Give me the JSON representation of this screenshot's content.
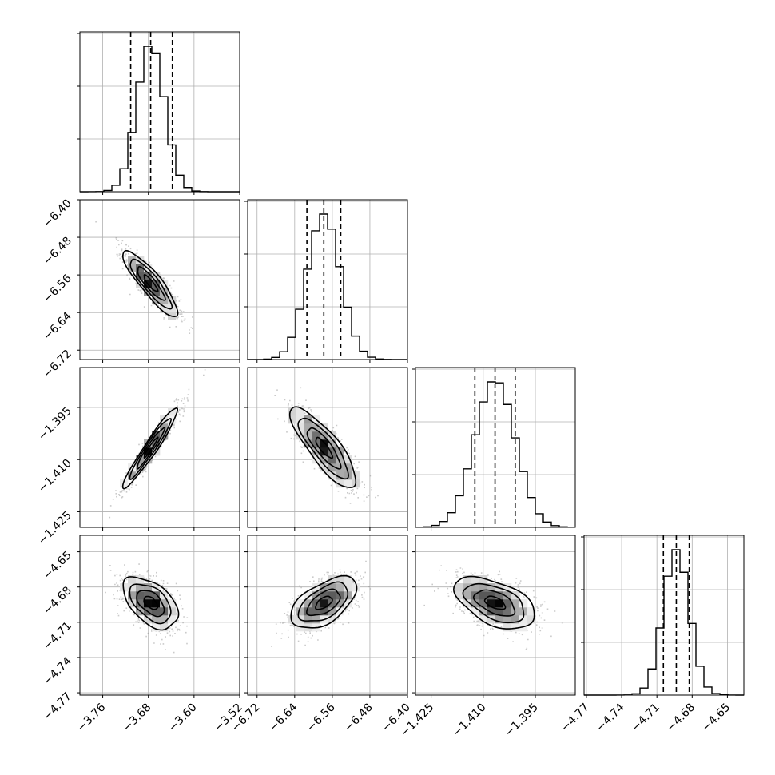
{
  "chart_data": {
    "type": "corner",
    "grid": true,
    "parameters": [
      {
        "range": [
          -3.8,
          -3.52
        ],
        "ticks": [
          -3.76,
          -3.68,
          -3.6,
          -3.52
        ],
        "tick_labels": [
          "−3.76",
          "−3.68",
          "−3.60",
          "−3.52"
        ],
        "quantiles": [
          -3.711,
          -3.676,
          -3.638
        ],
        "mean": -3.676,
        "std": 0.024
      },
      {
        "range": [
          -6.74,
          -6.4
        ],
        "ticks": [
          -6.72,
          -6.64,
          -6.56,
          -6.48,
          -6.4
        ],
        "tick_labels": [
          "−6.72",
          "−6.64",
          "−6.56",
          "−6.48",
          "−6.40"
        ],
        "quantiles": [
          -6.614,
          -6.578,
          -6.542
        ],
        "mean": -6.578,
        "std": 0.035
      },
      {
        "range": [
          -1.4295,
          -1.3835
        ],
        "ticks": [
          -1.425,
          -1.41,
          -1.395
        ],
        "tick_labels": [
          "−1.425",
          "−1.410",
          "−1.395"
        ],
        "quantiles": [
          -1.4124,
          -1.4066,
          -1.4008
        ],
        "mean": -1.4066,
        "std": 0.0058
      },
      {
        "range": [
          -4.772,
          -4.636
        ],
        "ticks": [
          -4.77,
          -4.74,
          -4.71,
          -4.68,
          -4.65
        ],
        "tick_labels": [
          "−4.77",
          "−4.74",
          "−4.71",
          "−4.68",
          "−4.65"
        ],
        "quantiles": [
          -4.7045,
          -4.6935,
          -4.6825
        ],
        "mean": -4.6935,
        "std": 0.011
      }
    ],
    "correlations": [
      [
        1,
        -0.88,
        0.96,
        -0.5
      ],
      [
        -0.88,
        1,
        -0.83,
        0.55
      ],
      [
        0.96,
        -0.83,
        1,
        -0.5
      ],
      [
        -0.5,
        0.55,
        -0.5,
        1
      ]
    ],
    "histogram_bins": 20,
    "contour_levels_sigma": [
      0.5,
      1.0,
      1.5,
      2.0
    ]
  }
}
